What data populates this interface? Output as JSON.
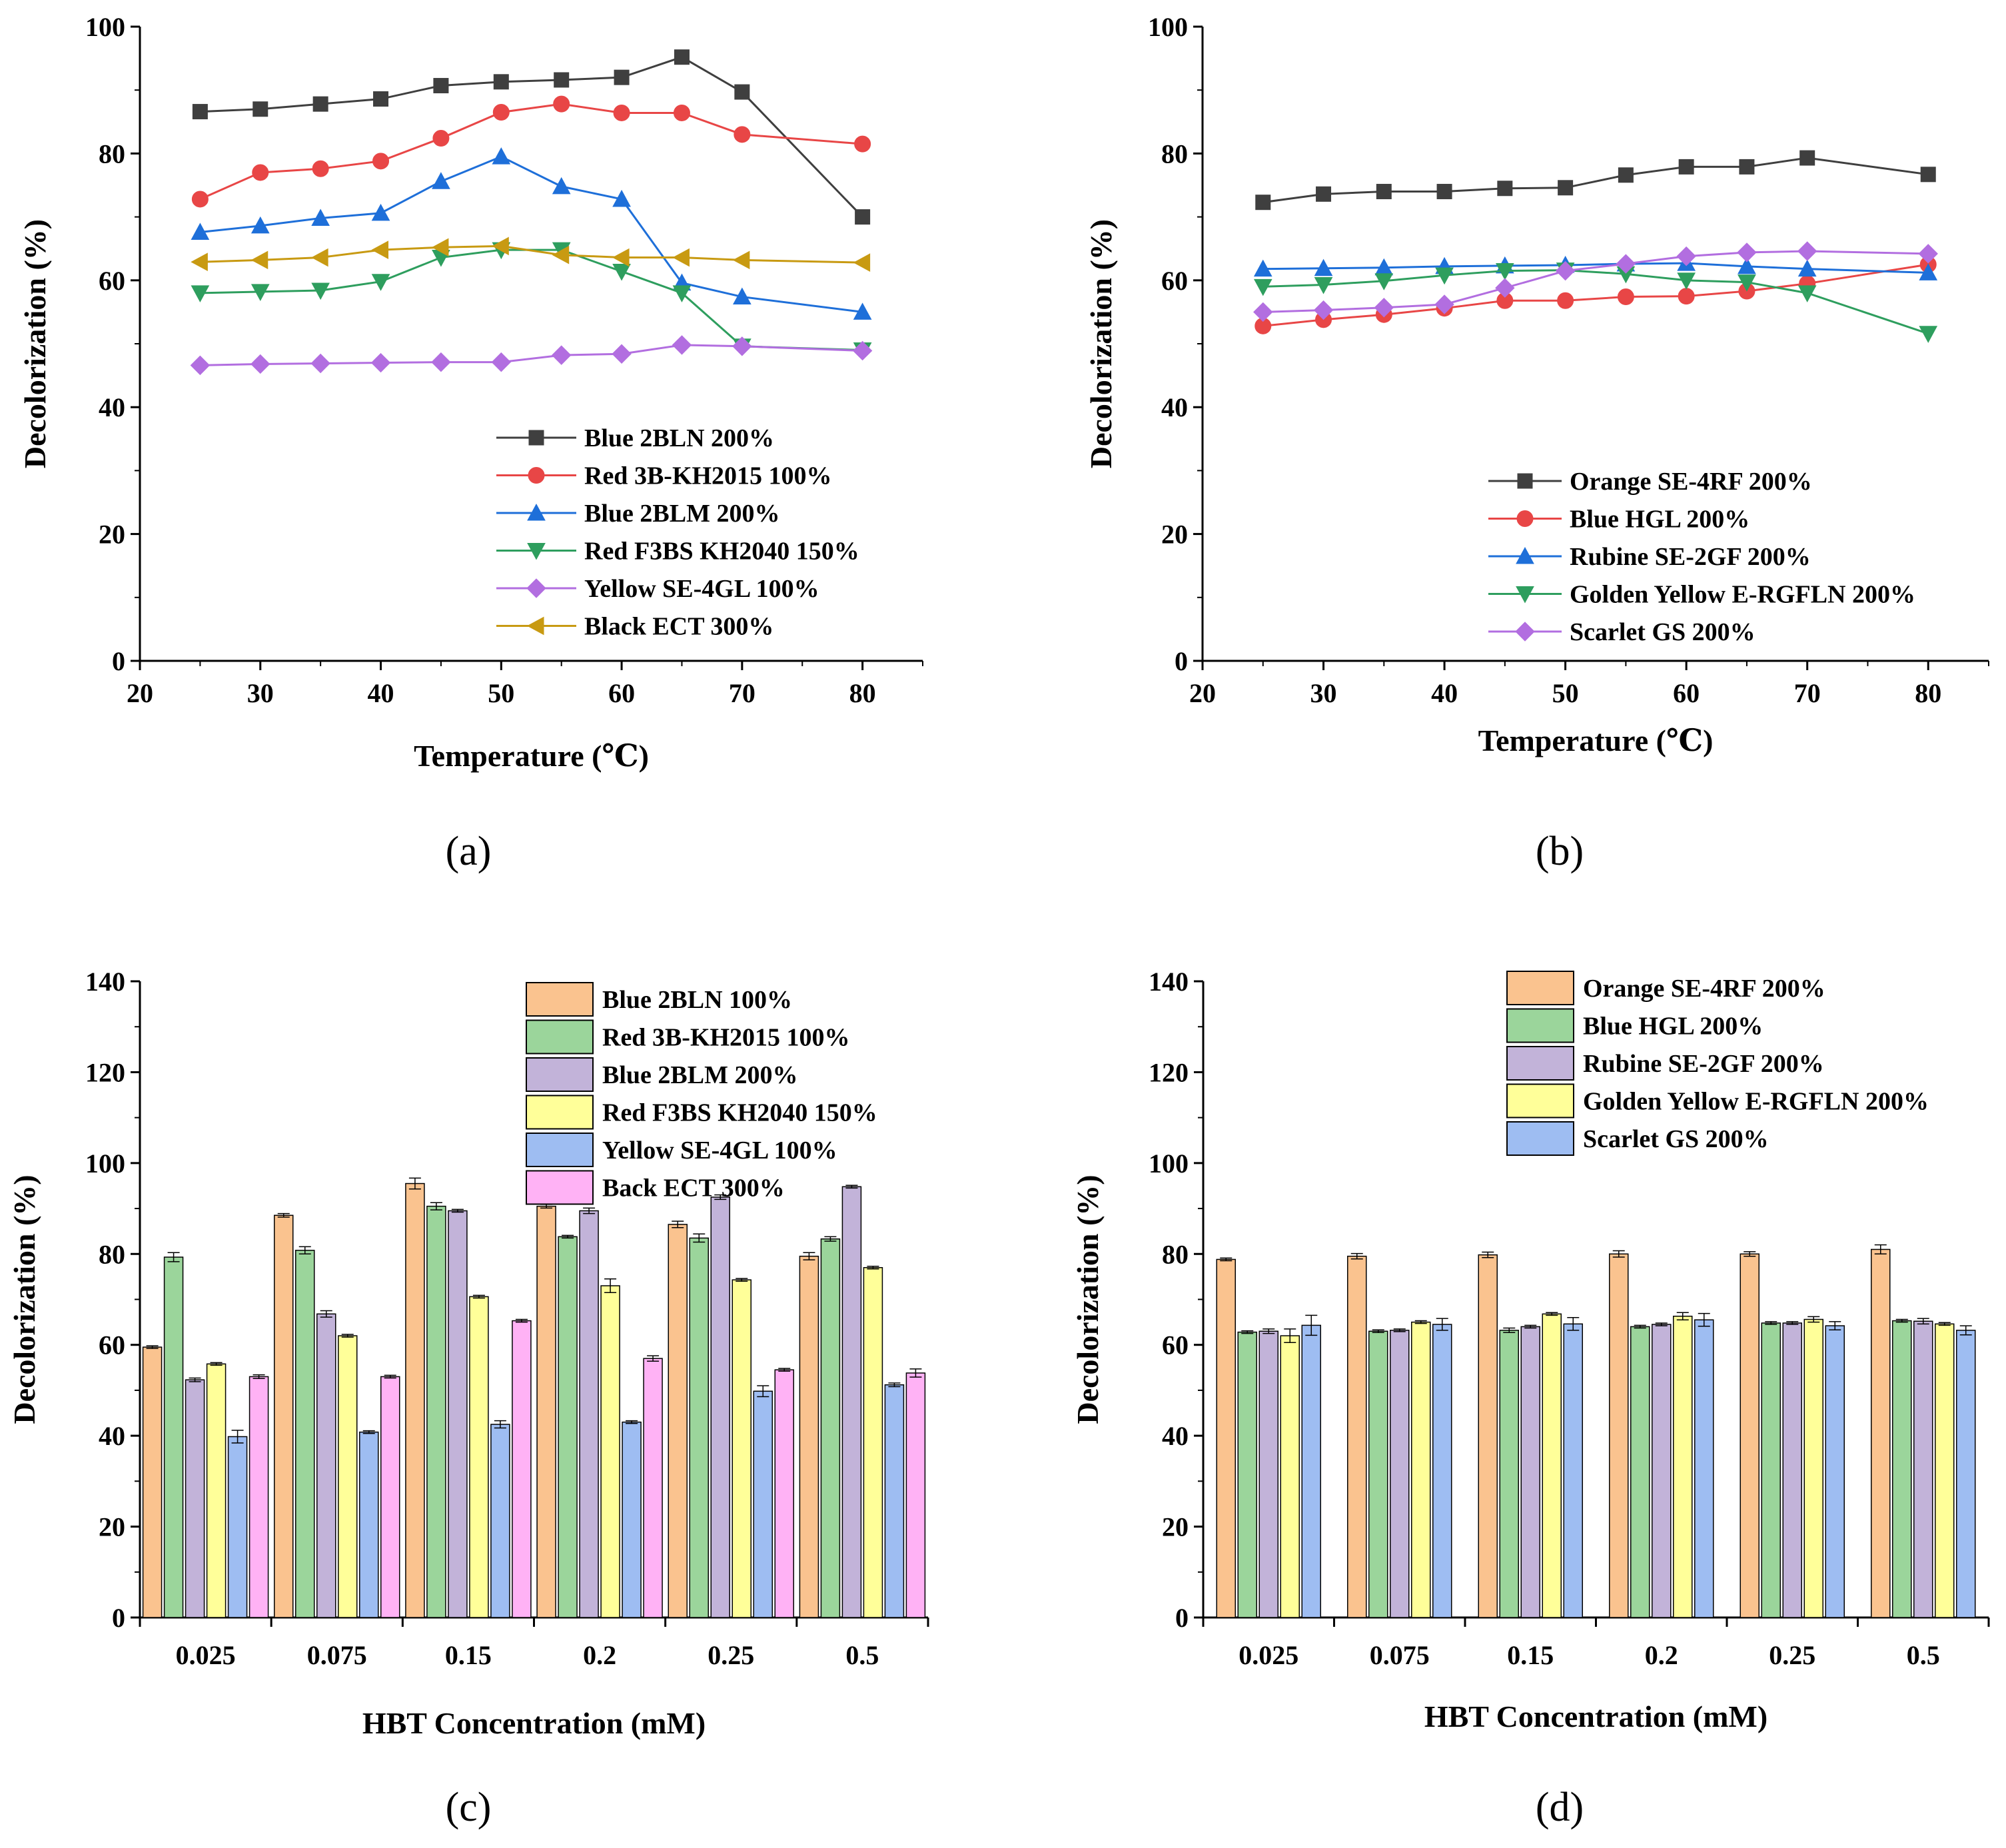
{
  "chart_data": [
    {
      "type": "line",
      "panel_label": "(a)",
      "xlabel": "Temperature (℃)",
      "ylabel": "Decolorization (%)",
      "xlim": [
        20,
        85
      ],
      "ylim": [
        0,
        100
      ],
      "xticks": [
        20,
        30,
        40,
        50,
        60,
        70,
        80
      ],
      "yticks": [
        0,
        20,
        40,
        60,
        80,
        100
      ],
      "legend_position": "lower-right",
      "x": [
        25,
        30,
        35,
        40,
        45,
        50,
        55,
        60,
        65,
        70,
        80
      ],
      "series": [
        {
          "name": "Blue 2BLN 200%",
          "color": "#3f3f3f",
          "marker": "square",
          "values": [
            86.6,
            87.0,
            87.8,
            88.6,
            90.7,
            91.3,
            91.6,
            92.0,
            95.2,
            89.7,
            70.0
          ]
        },
        {
          "name": "Red 3B-KH2015 100%",
          "color": "#e84646",
          "marker": "circle",
          "values": [
            72.8,
            77.0,
            77.6,
            78.8,
            82.4,
            86.5,
            87.8,
            86.4,
            86.4,
            83.0,
            81.5
          ]
        },
        {
          "name": "Blue 2BLM 200%",
          "color": "#1e6fd9",
          "marker": "triangle-up",
          "values": [
            67.6,
            68.6,
            69.8,
            70.6,
            75.6,
            79.5,
            74.8,
            72.8,
            59.6,
            57.4,
            55.0
          ]
        },
        {
          "name": "Red F3BS KH2040 150%",
          "color": "#2e9e5e",
          "marker": "triangle-down",
          "values": [
            58.0,
            58.2,
            58.4,
            59.8,
            63.6,
            64.8,
            64.8,
            61.4,
            58.0,
            49.6,
            49.0
          ]
        },
        {
          "name": "Yellow SE-4GL 100%",
          "color": "#b26ee0",
          "marker": "diamond",
          "values": [
            46.6,
            46.8,
            46.9,
            47.0,
            47.1,
            47.1,
            48.2,
            48.4,
            49.8,
            49.6,
            48.9
          ]
        },
        {
          "name": "Black ECT 300%",
          "color": "#c89a12",
          "marker": "triangle-left",
          "values": [
            62.9,
            63.2,
            63.6,
            64.8,
            65.2,
            65.4,
            64.0,
            63.6,
            63.6,
            63.2,
            62.8
          ]
        }
      ]
    },
    {
      "type": "line",
      "panel_label": "(b)",
      "xlabel": "Temperature (℃)",
      "ylabel": "Decolorization (%)",
      "xlim": [
        20,
        85
      ],
      "ylim": [
        0,
        100
      ],
      "xticks": [
        20,
        30,
        40,
        50,
        60,
        70,
        80
      ],
      "yticks": [
        0,
        20,
        40,
        60,
        80,
        100
      ],
      "legend_position": "lower-right",
      "x": [
        25,
        30,
        35,
        40,
        45,
        50,
        55,
        60,
        65,
        70,
        80
      ],
      "series": [
        {
          "name": "Orange SE-4RF 200%",
          "color": "#3f3f3f",
          "marker": "square",
          "values": [
            72.3,
            73.6,
            74.0,
            74.0,
            74.5,
            74.6,
            76.6,
            77.9,
            77.9,
            79.3,
            76.7
          ]
        },
        {
          "name": "Blue HGL 200%",
          "color": "#e84646",
          "marker": "circle",
          "values": [
            52.8,
            53.8,
            54.6,
            55.6,
            56.8,
            56.8,
            57.4,
            57.5,
            58.3,
            59.5,
            62.5
          ]
        },
        {
          "name": "Rubine SE-2GF 200%",
          "color": "#1e6fd9",
          "marker": "triangle-up",
          "values": [
            61.8,
            61.9,
            62.0,
            62.2,
            62.3,
            62.4,
            62.6,
            62.7,
            62.2,
            61.8,
            61.2
          ]
        },
        {
          "name": "Golden Yellow E-RGFLN 200%",
          "color": "#2e9e5e",
          "marker": "triangle-down",
          "values": [
            59.0,
            59.3,
            59.9,
            60.8,
            61.5,
            61.6,
            61.0,
            60.0,
            59.7,
            58.0,
            51.6
          ]
        },
        {
          "name": "Scarlet GS 200%",
          "color": "#b26ee0",
          "marker": "diamond",
          "values": [
            55.0,
            55.3,
            55.7,
            56.2,
            58.8,
            61.5,
            62.6,
            63.8,
            64.4,
            64.6,
            64.2
          ]
        }
      ]
    },
    {
      "type": "bar",
      "panel_label": "(c)",
      "xlabel": "HBT Concentration (mM)",
      "ylabel": "Decolorization (%)",
      "ylim": [
        0,
        140
      ],
      "yticks": [
        0,
        20,
        40,
        60,
        80,
        100,
        120,
        140
      ],
      "legend_position": "top-right",
      "categories": [
        "0.025",
        "0.075",
        "0.15",
        "0.2",
        "0.25",
        "0.5"
      ],
      "series": [
        {
          "name": "Blue 2BLN 100%",
          "color": "#fac38f",
          "values": [
            59.5,
            88.5,
            95.5,
            90.5,
            86.5,
            79.5
          ],
          "errors": [
            0.3,
            0.4,
            1.2,
            0.4,
            0.7,
            0.8
          ]
        },
        {
          "name": "Red 3B-KH2015 100%",
          "color": "#9bd59b",
          "values": [
            79.3,
            80.8,
            90.5,
            83.8,
            83.5,
            83.3
          ],
          "errors": [
            1.0,
            0.8,
            0.8,
            0.3,
            0.9,
            0.5
          ]
        },
        {
          "name": "Blue 2BLM 200%",
          "color": "#c2b3d9",
          "values": [
            52.3,
            66.8,
            89.5,
            89.5,
            92.5,
            94.8
          ],
          "errors": [
            0.4,
            0.7,
            0.3,
            0.6,
            0.5,
            0.3
          ]
        },
        {
          "name": "Red F3BS KH2040 150%",
          "color": "#ffff99",
          "values": [
            55.8,
            62.0,
            70.6,
            73.0,
            74.3,
            77.0
          ],
          "errors": [
            0.3,
            0.3,
            0.3,
            1.5,
            0.3,
            0.3
          ]
        },
        {
          "name": "Yellow SE-4GL 100%",
          "color": "#9ebdf2",
          "values": [
            39.8,
            40.8,
            42.5,
            43.0,
            49.8,
            51.2
          ],
          "errors": [
            1.4,
            0.3,
            0.8,
            0.3,
            1.2,
            0.4
          ]
        },
        {
          "name": "Back ECT 300%",
          "color": "#ffb2f5",
          "values": [
            53.0,
            53.0,
            65.3,
            57.0,
            54.5,
            53.8
          ],
          "errors": [
            0.4,
            0.3,
            0.3,
            0.6,
            0.3,
            0.9
          ]
        }
      ]
    },
    {
      "type": "bar",
      "panel_label": "(d)",
      "xlabel": "HBT Concentration (mM)",
      "ylabel": "Decolorization (%)",
      "ylim": [
        0,
        140
      ],
      "yticks": [
        0,
        20,
        40,
        60,
        80,
        100,
        120,
        140
      ],
      "legend_position": "top-right",
      "categories": [
        "0.025",
        "0.075",
        "0.15",
        "0.2",
        "0.25",
        "0.5"
      ],
      "series": [
        {
          "name": "Orange SE-4RF 200%",
          "color": "#fac38f",
          "values": [
            78.8,
            79.5,
            79.8,
            80.0,
            80.0,
            81.0
          ],
          "errors": [
            0.3,
            0.6,
            0.6,
            0.7,
            0.5,
            1.0
          ]
        },
        {
          "name": "Blue HGL 200%",
          "color": "#9bd59b",
          "values": [
            62.8,
            63.0,
            63.2,
            64.0,
            64.8,
            65.3
          ],
          "errors": [
            0.3,
            0.3,
            0.5,
            0.3,
            0.3,
            0.3
          ]
        },
        {
          "name": "Rubine SE-2GF 200%",
          "color": "#c2b3d9",
          "values": [
            63.0,
            63.2,
            64.0,
            64.5,
            64.8,
            65.2
          ],
          "errors": [
            0.5,
            0.3,
            0.3,
            0.3,
            0.3,
            0.6
          ]
        },
        {
          "name": "Golden Yellow E-RGFLN 200%",
          "color": "#ffff99",
          "values": [
            62.0,
            65.0,
            66.8,
            66.3,
            65.6,
            64.6
          ],
          "errors": [
            1.5,
            0.3,
            0.3,
            0.8,
            0.6,
            0.3
          ]
        },
        {
          "name": "Scarlet GS 200%",
          "color": "#9ebdf2",
          "values": [
            64.3,
            64.5,
            64.6,
            65.5,
            64.2,
            63.2
          ],
          "errors": [
            2.2,
            1.3,
            1.4,
            1.4,
            0.9,
            1.0
          ]
        }
      ]
    }
  ]
}
